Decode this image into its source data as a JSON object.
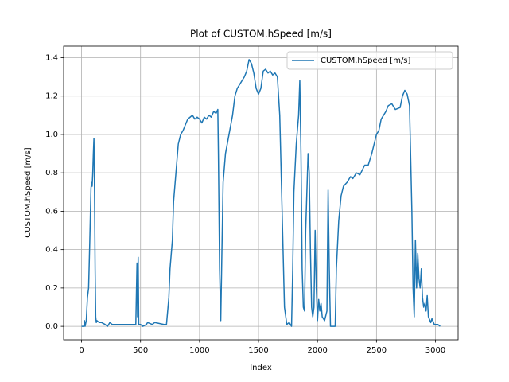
{
  "chart_data": {
    "type": "line",
    "title": "Plot of CUSTOM.hSpeed [m/s]",
    "x_label": "Index",
    "y_label": "CUSTOM.hSpeed [m/s]",
    "x": [
      0,
      20,
      25,
      30,
      40,
      50,
      60,
      70,
      80,
      85,
      90,
      95,
      100,
      105,
      110,
      115,
      120,
      125,
      130,
      150,
      170,
      200,
      220,
      240,
      260,
      300,
      400,
      460,
      470,
      475,
      480,
      485,
      500,
      520,
      550,
      560,
      600,
      620,
      700,
      720,
      740,
      750,
      770,
      780,
      800,
      820,
      840,
      860,
      880,
      900,
      920,
      940,
      960,
      980,
      1000,
      1020,
      1040,
      1060,
      1080,
      1100,
      1120,
      1140,
      1155,
      1160,
      1170,
      1180,
      1190,
      1200,
      1220,
      1250,
      1280,
      1300,
      1320,
      1340,
      1360,
      1380,
      1400,
      1420,
      1440,
      1460,
      1480,
      1500,
      1520,
      1540,
      1560,
      1580,
      1600,
      1620,
      1640,
      1660,
      1680,
      1700,
      1720,
      1740,
      1760,
      1780,
      1790,
      1800,
      1820,
      1840,
      1850,
      1860,
      1870,
      1880,
      1890,
      1900,
      1920,
      1930,
      1940,
      1950,
      1960,
      1970,
      1980,
      1990,
      2000,
      2010,
      2020,
      2030,
      2040,
      2060,
      2080,
      2090,
      2100,
      2110,
      2120,
      2150,
      2160,
      2180,
      2200,
      2220,
      2250,
      2280,
      2300,
      2330,
      2360,
      2400,
      2430,
      2460,
      2480,
      2500,
      2520,
      2540,
      2560,
      2580,
      2600,
      2630,
      2660,
      2700,
      2720,
      2740,
      2760,
      2780,
      2800,
      2810,
      2820,
      2830,
      2840,
      2850,
      2860,
      2870,
      2880,
      2890,
      2900,
      2910,
      2920,
      2930,
      2940,
      2960,
      2970,
      2990,
      3020,
      3040
    ],
    "series": [
      {
        "name": "CUSTOM.hSpeed [m/s]",
        "color": "#1f77b4",
        "values": [
          0,
          0,
          0.03,
          0,
          0.03,
          0.15,
          0.2,
          0.45,
          0.72,
          0.75,
          0.73,
          0.8,
          0.9,
          0.98,
          0.7,
          0.3,
          0.05,
          0.02,
          0.03,
          0.02,
          0.02,
          0.01,
          0,
          0.02,
          0.01,
          0.01,
          0.01,
          0.01,
          0.33,
          0.05,
          0.36,
          0.01,
          0.01,
          0,
          0.01,
          0.02,
          0.01,
          0.02,
          0.01,
          0.01,
          0.15,
          0.3,
          0.45,
          0.65,
          0.8,
          0.95,
          1.0,
          1.02,
          1.05,
          1.08,
          1.09,
          1.1,
          1.08,
          1.09,
          1.08,
          1.06,
          1.09,
          1.08,
          1.1,
          1.09,
          1.12,
          1.11,
          1.13,
          0.9,
          0.3,
          0.03,
          0.4,
          0.75,
          0.9,
          1.0,
          1.1,
          1.2,
          1.24,
          1.26,
          1.28,
          1.3,
          1.33,
          1.39,
          1.37,
          1.32,
          1.24,
          1.21,
          1.24,
          1.33,
          1.34,
          1.32,
          1.33,
          1.31,
          1.32,
          1.3,
          1.1,
          0.6,
          0.1,
          0.01,
          0.02,
          0,
          0.3,
          0.7,
          0.95,
          1.1,
          1.28,
          0.9,
          0.3,
          0.1,
          0.08,
          0.5,
          0.9,
          0.8,
          0.4,
          0.1,
          0.05,
          0.1,
          0.5,
          0.2,
          0.03,
          0.14,
          0.08,
          0.12,
          0.05,
          0.03,
          0.08,
          0.71,
          0.3,
          0,
          0,
          0,
          0.3,
          0.55,
          0.68,
          0.73,
          0.75,
          0.78,
          0.77,
          0.8,
          0.79,
          0.84,
          0.84,
          0.9,
          0.95,
          1.0,
          1.02,
          1.08,
          1.1,
          1.12,
          1.15,
          1.16,
          1.13,
          1.14,
          1.2,
          1.23,
          1.21,
          1.15,
          0.6,
          0.2,
          0.05,
          0.45,
          0.2,
          0.38,
          0.25,
          0.2,
          0.3,
          0.15,
          0.1,
          0.12,
          0.08,
          0.16,
          0.05,
          0.02,
          0.04,
          0.01,
          0.01,
          0
        ]
      }
    ],
    "xlim": [
      -152,
      3192
    ],
    "ylim": [
      -0.07,
      1.46
    ],
    "xticks": [
      0,
      500,
      1000,
      1500,
      2000,
      2500,
      3000
    ],
    "yticks": [
      {
        "value": 0,
        "label": "0.0"
      },
      {
        "value": 0.2,
        "label": "0.2"
      },
      {
        "value": 0.4,
        "label": "0.4"
      },
      {
        "value": 0.6,
        "label": "0.6"
      },
      {
        "value": 0.8,
        "label": "0.8"
      },
      {
        "value": 1,
        "label": "1.0"
      },
      {
        "value": 1.2,
        "label": "1.2"
      },
      {
        "value": 1.4,
        "label": "1.4"
      }
    ],
    "grid": true,
    "legend": "upper right"
  }
}
